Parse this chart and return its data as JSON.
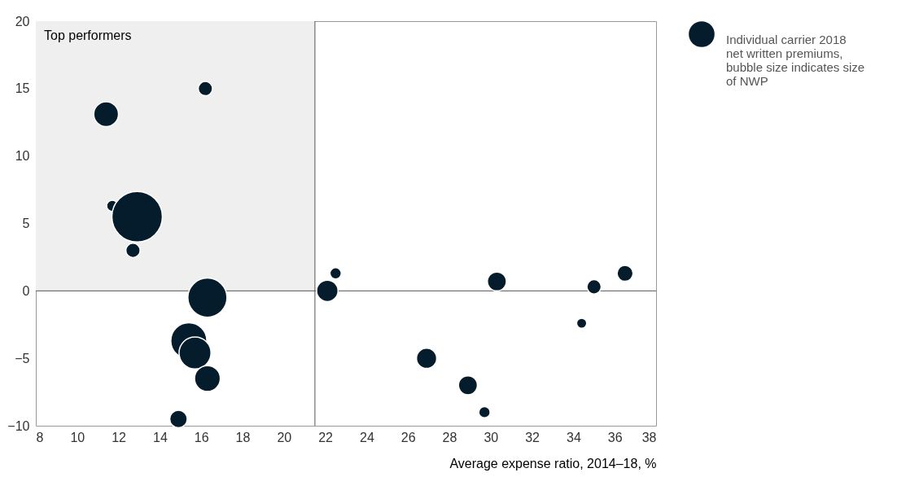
{
  "chart_data": {
    "type": "bubble",
    "xlabel": "Average expense ratio, 2014–18, %",
    "xlim": [
      8,
      38
    ],
    "ylim": [
      -10,
      20
    ],
    "xticks": [
      8,
      10,
      12,
      14,
      16,
      18,
      20,
      22,
      24,
      26,
      28,
      30,
      32,
      34,
      36,
      38
    ],
    "yticks": [
      {
        "value": -10,
        "label": "−10"
      },
      {
        "value": -5,
        "label": "−5"
      },
      0,
      5,
      10,
      15,
      20
    ],
    "grid": false,
    "legend": "right",
    "marker": "circle",
    "series": [
      {
        "name": "Individual carrier 2018 net written premiums, bubble size indicates size of NWP",
        "color": "#051c2c",
        "x": [
          11.4,
          16.2,
          11.7,
          12.9,
          12.7,
          16.3,
          15.4,
          15.7,
          16.3,
          14.9,
          22.5,
          22.1,
          30.3,
          36.5,
          35.0,
          34.4,
          26.9,
          28.9,
          29.7
        ],
        "values": [
          13.1,
          15.0,
          6.3,
          5.5,
          3.0,
          -0.5,
          -3.7,
          -4.6,
          -6.5,
          -9.5,
          1.3,
          0,
          0.7,
          1.3,
          0.3,
          -2.4,
          -5.0,
          -7.0,
          -9.0
        ],
        "sizes": [
          0.24,
          0.08,
          0.05,
          1,
          0.08,
          0.6,
          0.51,
          0.4,
          0.26,
          0.12,
          0.05,
          0.18,
          0.14,
          0.1,
          0.08,
          0.04,
          0.16,
          0.14,
          0.05
        ]
      }
    ],
    "ref_lines": [
      {
        "axis": "x",
        "value": 21.5
      },
      {
        "axis": "y",
        "value": 0
      }
    ],
    "bands": [
      {
        "axis": "x",
        "from": 8,
        "to": 21.5,
        "label": "Top performers",
        "color": "#efefef"
      }
    ]
  }
}
